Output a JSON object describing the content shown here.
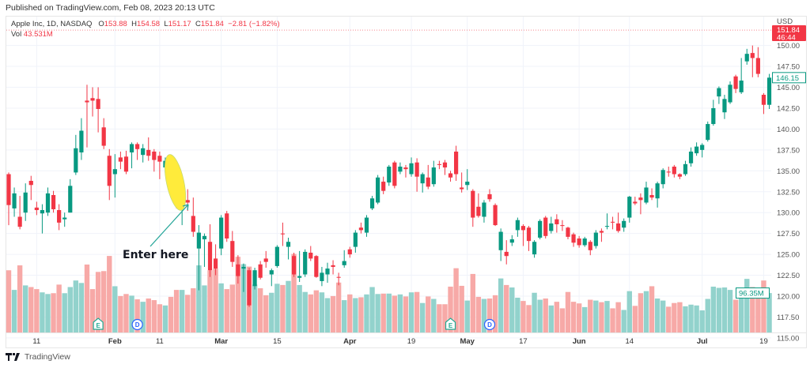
{
  "published": "Published on TradingView.com, Feb 08, 2023 20:13 UTC",
  "legend": {
    "symbol": "Apple Inc, 1D, NASDAQ",
    "o_label": "O",
    "o": "153.88",
    "h_label": "H",
    "h": "154.58",
    "l_label": "L",
    "l": "151.17",
    "c_label": "C",
    "c": "151.84",
    "change": "−2.81 (−1.82%)",
    "vol_label": "Vol",
    "vol": "43.531M"
  },
  "axis": {
    "currency": "USD",
    "last_price": "151.84",
    "countdown": "46:44",
    "marked_price": "146.15",
    "marked_volume": "96.35M"
  },
  "colors": {
    "up": "#089981",
    "down": "#f23645",
    "up_vol": "#92d2cc",
    "down_vol": "#f7a9a7",
    "highlight": "#ffeb3b",
    "arrow": "#26a69a"
  },
  "annotation": {
    "text": "Enter here"
  },
  "footer": {
    "logo_text": "TradingView"
  },
  "chart_data": {
    "type": "candlestick",
    "title": "Apple Inc, 1D, NASDAQ",
    "ylim": [
      112.5,
      152.5
    ],
    "y_ticks": [
      "150.00",
      "147.50",
      "145.00",
      "142.50",
      "140.00",
      "137.50",
      "135.00",
      "132.50",
      "130.00",
      "127.50",
      "125.00",
      "122.50",
      "120.00",
      "117.50",
      "115.00"
    ],
    "x_ticks": [
      {
        "label": "11",
        "bar": 5
      },
      {
        "label": "Feb",
        "bar": 19,
        "bold": true
      },
      {
        "label": "11",
        "bar": 27
      },
      {
        "label": "Mar",
        "bar": 38,
        "bold": true
      },
      {
        "label": "15",
        "bar": 48
      },
      {
        "label": "Apr",
        "bar": 61,
        "bold": true
      },
      {
        "label": "19",
        "bar": 72
      },
      {
        "label": "May",
        "bar": 82,
        "bold": true
      },
      {
        "label": "17",
        "bar": 92
      },
      {
        "label": "Jun",
        "bar": 102,
        "bold": true
      },
      {
        "label": "14",
        "bar": 111
      },
      {
        "label": "Jul",
        "bar": 124,
        "bold": true
      },
      {
        "label": "19",
        "bar": 135
      }
    ],
    "grid": true,
    "ohlcv_columns": [
      "open",
      "high",
      "low",
      "close",
      "volume_M"
    ],
    "ohlcv": [
      [
        134.6,
        134.8,
        128.5,
        130.9,
        152
      ],
      [
        130.5,
        133,
        129.5,
        132.3,
        104
      ],
      [
        129.5,
        132,
        128,
        128.3,
        164
      ],
      [
        130,
        133.5,
        129,
        132.4,
        115
      ],
      [
        133.8,
        134.4,
        131.5,
        133.3,
        111
      ],
      [
        130.6,
        131.3,
        129.7,
        130.3,
        106
      ],
      [
        129.9,
        131,
        127.5,
        130.3,
        98
      ],
      [
        130,
        133,
        129.6,
        132.3,
        94
      ],
      [
        132.1,
        132.6,
        130,
        130.4,
        96
      ],
      [
        130.3,
        131,
        127.9,
        128.8,
        117
      ],
      [
        129.2,
        130,
        128.3,
        129.4,
        96
      ],
      [
        130,
        134,
        130,
        133.2,
        111
      ],
      [
        134.8,
        139.3,
        134.5,
        137.7,
        127
      ],
      [
        137.2,
        141.3,
        136.3,
        139.8,
        121
      ],
      [
        143.4,
        145.3,
        137.8,
        143.2,
        166
      ],
      [
        143.7,
        145,
        141.5,
        143.4,
        106
      ],
      [
        143.6,
        145,
        139.6,
        142.4,
        148
      ],
      [
        140.2,
        141.3,
        137.6,
        138,
        150
      ],
      [
        136.8,
        137.6,
        131.5,
        133.2,
        187
      ],
      [
        134.6,
        137,
        131.8,
        135.2,
        113
      ],
      [
        136.6,
        137.3,
        135.2,
        136.1,
        89
      ],
      [
        136.7,
        137.4,
        134.6,
        134.9,
        94
      ],
      [
        137.2,
        138.4,
        135.3,
        138.2,
        90
      ],
      [
        138.2,
        138.4,
        136.3,
        137.6,
        81
      ],
      [
        136.9,
        138.2,
        136,
        137.7,
        75
      ],
      [
        137.5,
        139,
        136.2,
        136.8,
        83
      ],
      [
        137.3,
        137.6,
        134.9,
        136.3,
        79
      ],
      [
        136.8,
        137.3,
        134,
        136.1,
        69
      ],
      [
        135.4,
        136.6,
        134.8,
        136.2,
        66
      ],
      [
        136.5,
        136.9,
        132.2,
        134.2,
        87
      ],
      [
        132.6,
        133.9,
        130.5,
        132.2,
        104
      ],
      [
        130.7,
        131.4,
        128.5,
        131.1,
        104
      ],
      [
        131.5,
        132.8,
        130.2,
        131.2,
        92
      ],
      [
        129.6,
        131.8,
        127.1,
        127.7,
        108
      ],
      [
        125.7,
        128.5,
        120.7,
        127.6,
        164
      ],
      [
        126.8,
        127.5,
        123.5,
        127.2,
        115
      ],
      [
        126.5,
        128.6,
        122.3,
        123.1,
        152
      ],
      [
        124.5,
        126.2,
        122.5,
        123.3,
        156
      ],
      [
        125.7,
        129.7,
        124.9,
        129.4,
        120
      ],
      [
        129.9,
        130.2,
        126.5,
        126.9,
        106
      ],
      [
        126.6,
        127.8,
        123.5,
        124.1,
        117
      ],
      [
        123.8,
        124.9,
        121.5,
        122.4,
        185
      ],
      [
        123.3,
        123.9,
        120.5,
        123.5,
        167
      ],
      [
        123.1,
        123.4,
        118.7,
        118.9,
        161
      ],
      [
        121.2,
        123.4,
        120.8,
        123.1,
        117
      ],
      [
        123.8,
        124.2,
        122,
        122.2,
        108
      ],
      [
        124.5,
        125.4,
        123.4,
        124.1,
        91
      ],
      [
        122.6,
        123.3,
        121.2,
        123.1,
        97
      ],
      [
        123.6,
        126.1,
        123.4,
        125.9,
        119
      ],
      [
        127.5,
        128.8,
        126,
        127.4,
        116
      ],
      [
        125.9,
        127,
        124.4,
        126.5,
        126
      ],
      [
        124.8,
        125.2,
        122.3,
        122.6,
        192
      ],
      [
        122.2,
        125.4,
        121.7,
        122.4,
        116
      ],
      [
        122.6,
        125.6,
        122.3,
        125.3,
        99
      ],
      [
        125.2,
        126,
        124.2,
        124.5,
        93
      ],
      [
        124.8,
        124.9,
        122.2,
        122.3,
        103
      ],
      [
        121.8,
        123.5,
        121.2,
        122.8,
        98
      ],
      [
        122.6,
        124,
        121.6,
        123.3,
        84
      ],
      [
        123.7,
        124.3,
        122.6,
        123.5,
        89
      ],
      [
        122.3,
        122.8,
        121.3,
        122.2,
        122
      ],
      [
        123.7,
        125.5,
        123.4,
        124.2,
        79
      ],
      [
        125.6,
        125.9,
        124.6,
        125,
        93
      ],
      [
        125.9,
        127.9,
        125.2,
        127.6,
        84
      ],
      [
        128.2,
        128.8,
        127.5,
        127.9,
        86
      ],
      [
        127.6,
        129.7,
        127.1,
        129.4,
        93
      ],
      [
        130.5,
        132,
        130.3,
        131.7,
        111
      ],
      [
        131.2,
        134.5,
        131,
        134.2,
        94
      ],
      [
        133.7,
        134.3,
        132.2,
        132.6,
        95
      ],
      [
        133.6,
        135.7,
        133.2,
        135.5,
        95
      ],
      [
        136,
        136.2,
        132.9,
        133.2,
        90
      ],
      [
        134.9,
        136,
        134.6,
        135.5,
        93
      ],
      [
        135.4,
        135.7,
        134.2,
        135.2,
        88
      ],
      [
        134.6,
        136.6,
        134.3,
        135.9,
        98
      ],
      [
        136,
        136.5,
        132.5,
        134.3,
        99
      ],
      [
        133.5,
        134.8,
        132.4,
        134.6,
        72
      ],
      [
        134.2,
        135.7,
        132.8,
        133.1,
        88
      ],
      [
        133.4,
        136.2,
        133.1,
        135.4,
        82
      ],
      [
        135.8,
        136.2,
        135.2,
        135.7,
        69
      ],
      [
        136,
        136.3,
        134.5,
        135.4,
        69
      ],
      [
        134.7,
        135,
        133.7,
        134.2,
        112
      ],
      [
        137.3,
        138,
        133.8,
        134.6,
        157
      ],
      [
        133,
        134.8,
        132.4,
        132.8,
        114
      ],
      [
        133.3,
        135.2,
        132.7,
        133.7,
        78
      ],
      [
        132.6,
        132.8,
        128.3,
        129.4,
        143
      ],
      [
        130.7,
        132.3,
        129.4,
        129.6,
        87
      ],
      [
        129.5,
        131.5,
        128.8,
        131.2,
        82
      ],
      [
        132.2,
        132.8,
        131.3,
        131.6,
        83
      ],
      [
        130.9,
        131.1,
        128.4,
        128.5,
        91
      ],
      [
        125.5,
        128.1,
        124.2,
        127.7,
        132
      ],
      [
        125.3,
        126.7,
        123.8,
        124.8,
        116
      ],
      [
        126.4,
        127.3,
        126,
        126.8,
        110
      ],
      [
        127.9,
        129.4,
        127.1,
        129.1,
        85
      ],
      [
        128.4,
        128.6,
        126,
        127.9,
        77
      ],
      [
        128.2,
        128.4,
        125.4,
        126.6,
        67
      ],
      [
        125,
        126.7,
        124.6,
        126.5,
        97
      ],
      [
        127,
        129.2,
        126.8,
        129,
        80
      ],
      [
        129.4,
        129.6,
        126.9,
        127.2,
        83
      ],
      [
        127.8,
        129.5,
        127.5,
        128.7,
        66
      ],
      [
        129.2,
        129.8,
        127.6,
        128.6,
        75
      ],
      [
        128.5,
        129.1,
        127.8,
        128.4,
        59
      ],
      [
        128.2,
        128.3,
        126.8,
        127.1,
        99
      ],
      [
        127.4,
        127.6,
        125.9,
        126.4,
        75
      ],
      [
        126.9,
        127.2,
        125.8,
        126.1,
        71
      ],
      [
        126.1,
        127.1,
        125.9,
        126.9,
        62
      ],
      [
        126.5,
        126.7,
        124.9,
        125.5,
        80
      ],
      [
        126,
        127.9,
        125.7,
        127.6,
        78
      ],
      [
        127.8,
        128.1,
        126.5,
        127.6,
        74
      ],
      [
        128.3,
        129.9,
        128,
        128.4,
        77
      ],
      [
        128.9,
        129.5,
        128,
        128.8,
        59
      ],
      [
        128.7,
        130,
        127.6,
        127.8,
        74
      ],
      [
        128.2,
        129.3,
        127.7,
        129,
        55
      ],
      [
        129.4,
        132,
        128.8,
        131.9,
        101
      ],
      [
        131.3,
        131.9,
        130.9,
        131.1,
        65
      ],
      [
        131.8,
        132.3,
        129.8,
        131.5,
        96
      ],
      [
        131.2,
        133.7,
        131,
        133,
        101
      ],
      [
        132.1,
        132.9,
        131.5,
        131.8,
        113
      ],
      [
        131.7,
        133.7,
        130.6,
        133.5,
        83
      ],
      [
        133.4,
        135.3,
        132.9,
        135.1,
        78
      ],
      [
        134.9,
        135.5,
        134.3,
        134.8,
        63
      ],
      [
        135.5,
        135.7,
        134.2,
        134.6,
        72
      ],
      [
        134.6,
        134.7,
        134,
        134.3,
        74
      ],
      [
        134.6,
        136.2,
        134.4,
        135.8,
        64
      ],
      [
        135.9,
        137.8,
        135.5,
        137.3,
        68
      ],
      [
        137.1,
        138.4,
        136.8,
        137.9,
        66
      ],
      [
        137.5,
        138.3,
        136.6,
        138.1,
        54
      ],
      [
        138.7,
        140.9,
        138.5,
        140.6,
        82
      ],
      [
        140.6,
        143.5,
        140.4,
        142.5,
        112
      ],
      [
        143.9,
        145.1,
        143,
        144.9,
        109
      ],
      [
        142,
        144.1,
        141.2,
        143.6,
        110
      ],
      [
        143.2,
        145.7,
        143,
        145.3,
        104
      ],
      [
        146.3,
        146.5,
        144.3,
        144.8,
        80
      ],
      [
        144.4,
        148.5,
        144.2,
        145.8,
        104
      ],
      [
        148.1,
        149.6,
        147.7,
        149,
        131
      ],
      [
        149.1,
        150,
        146.2,
        148.5,
        111
      ],
      [
        148.5,
        149.8,
        146.2,
        146.6,
        97
      ],
      [
        144.1,
        144.3,
        141.8,
        142.9,
        127
      ],
      [
        142.9,
        146.6,
        142.4,
        146.15,
        96.35
      ]
    ],
    "markers": [
      {
        "label": "E",
        "bar": 16,
        "kind": "earnings"
      },
      {
        "label": "D",
        "bar": 23,
        "kind": "dividend"
      },
      {
        "label": "E",
        "bar": 79,
        "kind": "earnings"
      },
      {
        "label": "D",
        "bar": 86,
        "kind": "dividend"
      }
    ],
    "highlight_bars": [
      29,
      30
    ]
  }
}
